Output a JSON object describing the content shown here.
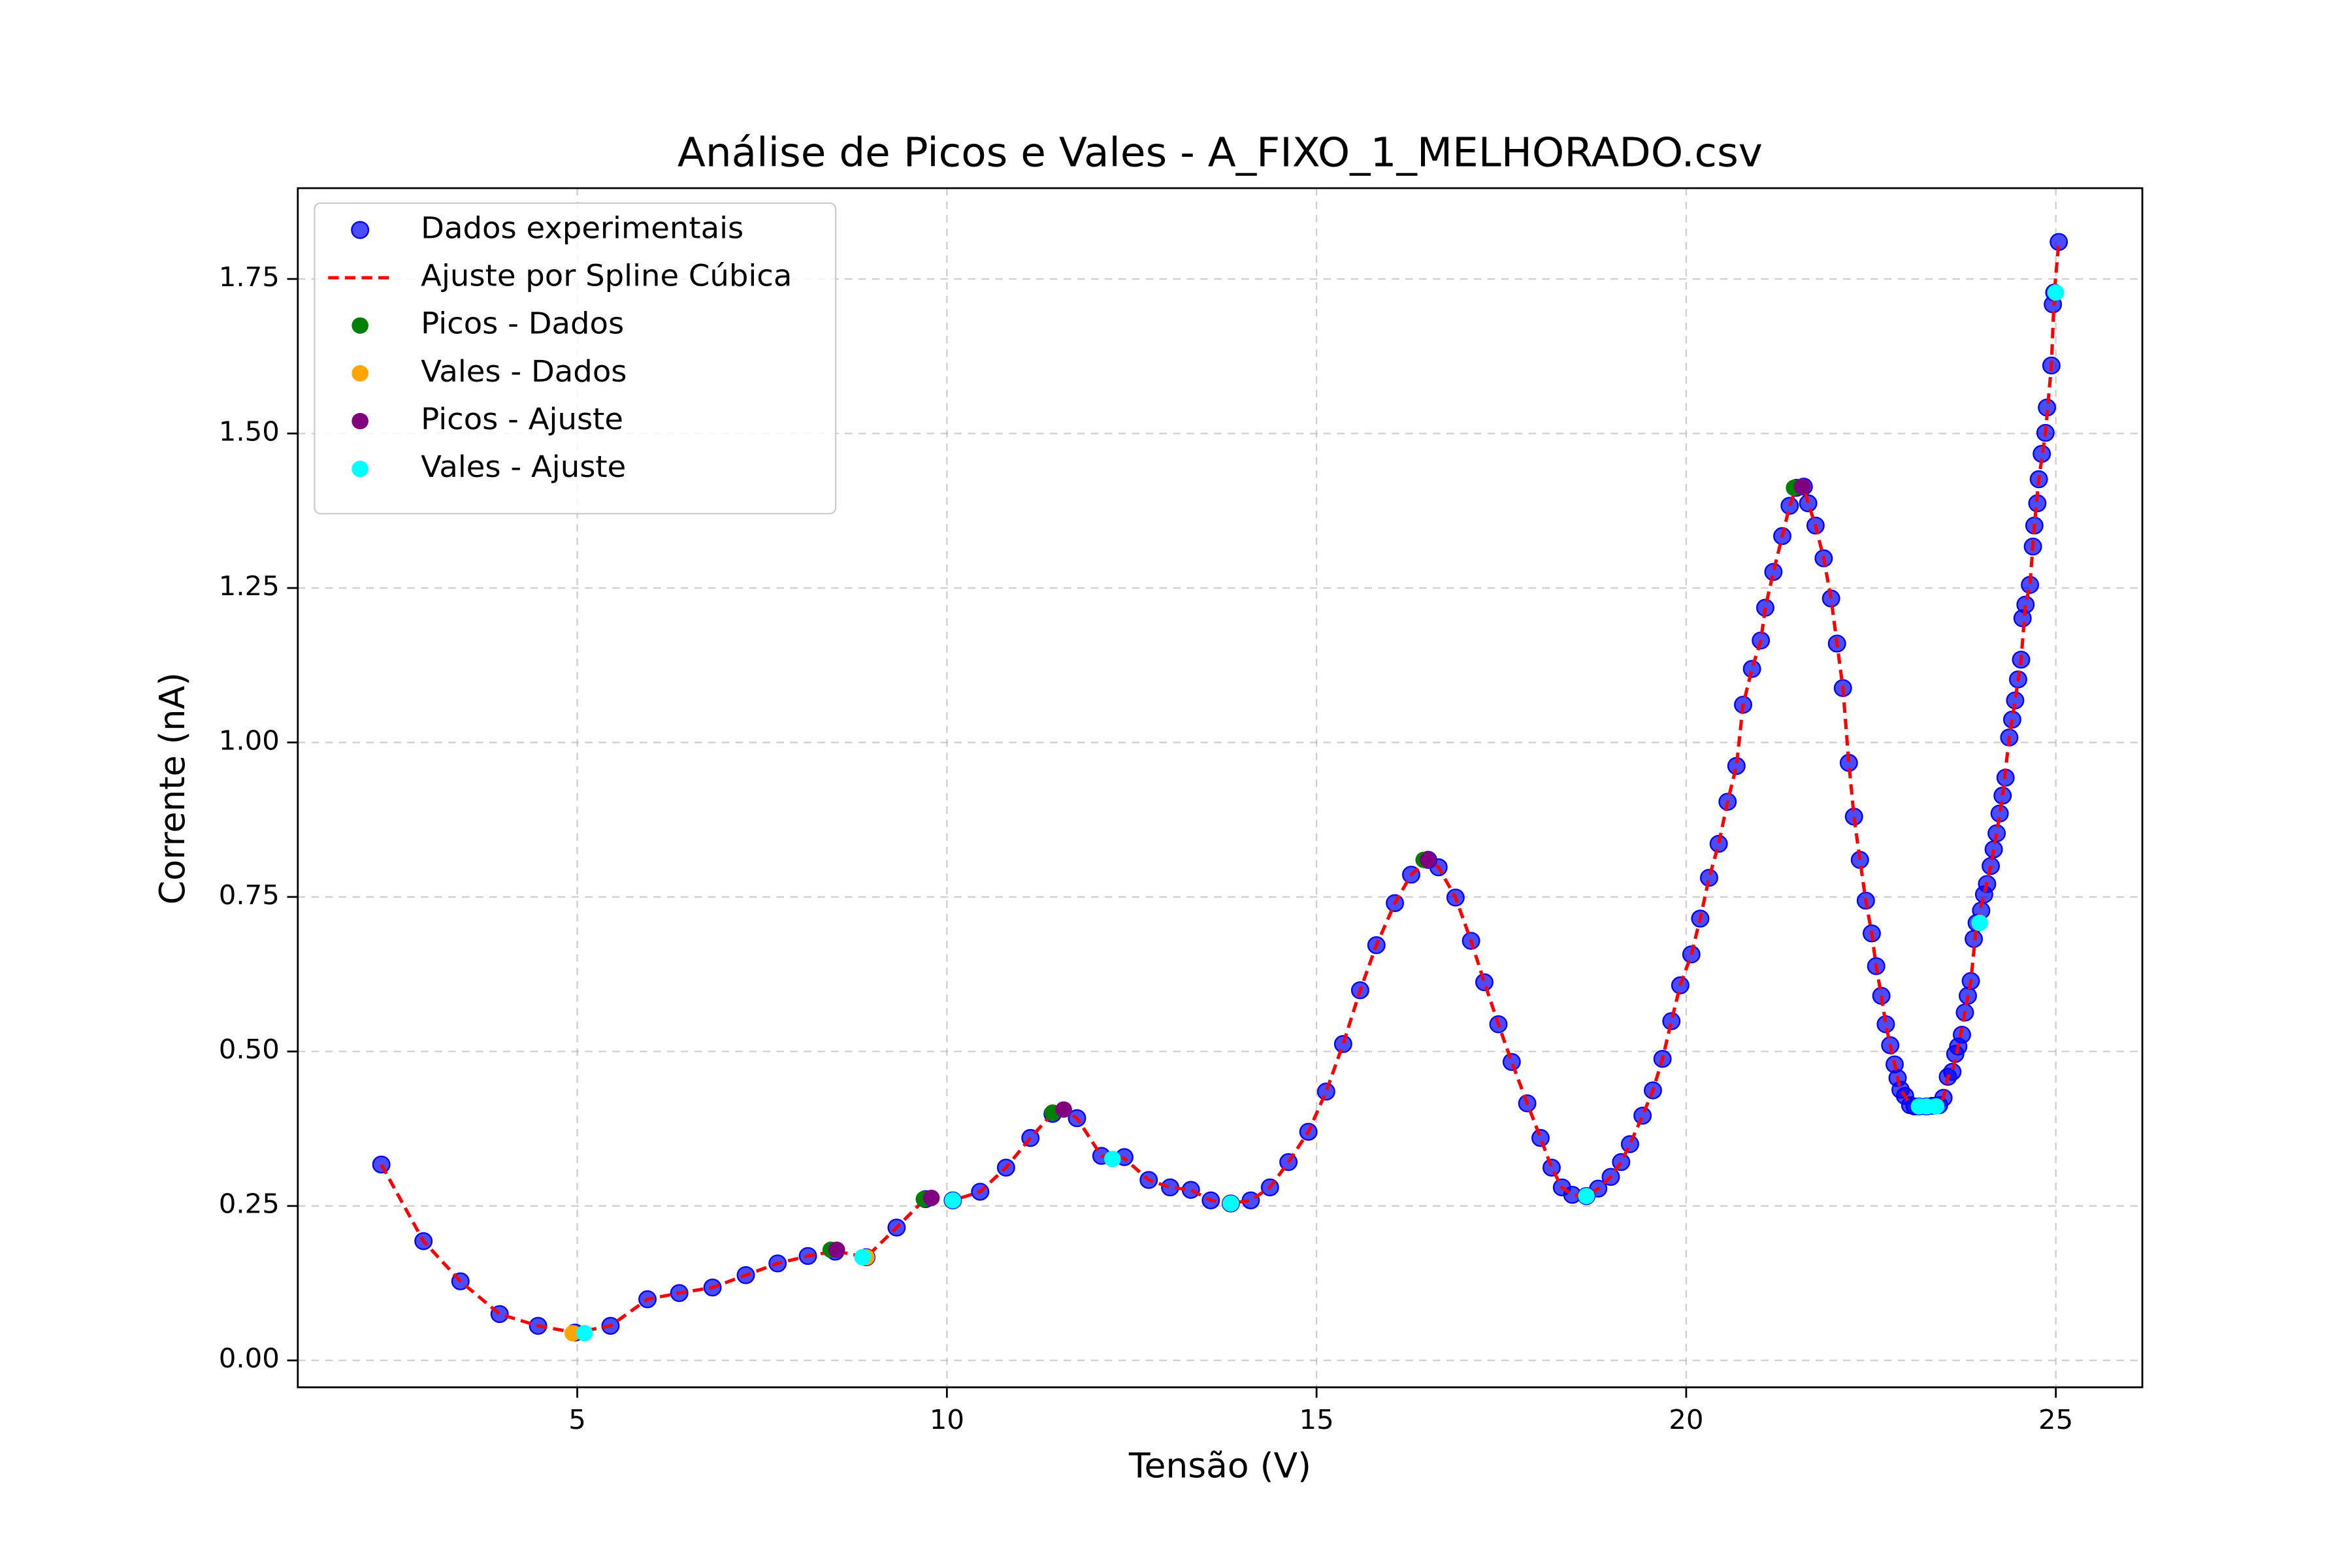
{
  "chart_data": {
    "type": "scatter",
    "title": "Análise de Picos e Vales - A_FIXO_1_MELHORADO.csv",
    "xlabel": "Tensão (V)",
    "ylabel": "Corrente (nA)",
    "xlim": [
      1.22,
      26.17
    ],
    "ylim": [
      -0.0435,
      1.897
    ],
    "xticks": [
      5,
      10,
      15,
      20,
      25
    ],
    "yticks": [
      {
        "value": 0,
        "label": "0.00"
      },
      {
        "value": 0.25,
        "label": "0.25"
      },
      {
        "value": 0.5,
        "label": "0.50"
      },
      {
        "value": 0.75,
        "label": "0.75"
      },
      {
        "value": 1,
        "label": "1.00"
      },
      {
        "value": 1.25,
        "label": "1.25"
      },
      {
        "value": 1.5,
        "label": "1.50"
      },
      {
        "value": 1.75,
        "label": "1.75"
      }
    ],
    "grid": true,
    "legend": "upper left",
    "series": [
      {
        "name": "Dados experimentais",
        "color": "#0000ff",
        "marker": "o",
        "x": [
          2.35,
          2.92,
          3.42,
          3.95,
          4.47,
          4.97,
          5.45,
          5.95,
          6.38,
          6.83,
          7.28,
          7.71,
          8.12,
          8.49,
          8.91,
          9.32,
          9.71,
          10.08,
          10.45,
          10.8,
          11.13,
          11.43,
          11.76,
          12.09,
          12.4,
          12.73,
          13.02,
          13.3,
          13.57,
          13.84,
          14.11,
          14.37,
          14.62,
          14.89,
          15.13,
          15.36,
          15.59,
          15.81,
          16.06,
          16.28,
          16.51,
          16.65,
          16.88,
          17.09,
          17.27,
          17.46,
          17.64,
          17.85,
          18.03,
          18.18,
          18.32,
          18.46,
          18.65,
          18.81,
          18.98,
          19.12,
          19.24,
          19.41,
          19.55,
          19.68,
          19.8,
          19.92,
          20.07,
          20.19,
          20.31,
          20.44,
          20.56,
          20.68,
          20.77,
          20.89,
          21.01,
          21.07,
          21.18,
          21.3,
          21.4,
          21.49,
          21.59,
          21.65,
          21.75,
          21.86,
          21.96,
          22.04,
          22.12,
          22.2,
          22.27,
          22.35,
          22.43,
          22.51,
          22.57,
          22.64,
          22.7,
          22.76,
          22.82,
          22.86,
          22.9,
          22.96,
          23.03,
          23.09,
          23.15,
          23.25,
          23.33,
          23.42,
          23.48,
          23.54,
          23.6,
          23.64,
          23.68,
          23.73,
          23.77,
          23.81,
          23.85,
          23.89,
          23.93,
          23.99,
          24.03,
          24.07,
          24.12,
          24.16,
          24.2,
          24.24,
          24.28,
          24.32,
          24.37,
          24.41,
          24.45,
          24.49,
          24.53,
          24.55,
          24.59,
          24.65,
          24.69,
          24.71,
          24.75,
          24.77,
          24.81,
          24.86,
          24.88,
          24.94,
          24.96,
          24.98,
          25.04
        ],
        "values": [
          0.317,
          0.193,
          0.128,
          0.075,
          0.056,
          0.045,
          0.056,
          0.099,
          0.109,
          0.118,
          0.138,
          0.157,
          0.169,
          0.176,
          0.167,
          0.215,
          0.261,
          0.259,
          0.273,
          0.312,
          0.36,
          0.399,
          0.392,
          0.331,
          0.329,
          0.292,
          0.28,
          0.276,
          0.259,
          0.254,
          0.259,
          0.28,
          0.321,
          0.37,
          0.435,
          0.512,
          0.599,
          0.672,
          0.74,
          0.786,
          0.81,
          0.798,
          0.749,
          0.679,
          0.612,
          0.544,
          0.483,
          0.416,
          0.36,
          0.312,
          0.28,
          0.268,
          0.266,
          0.278,
          0.297,
          0.321,
          0.35,
          0.396,
          0.437,
          0.488,
          0.549,
          0.607,
          0.657,
          0.715,
          0.781,
          0.836,
          0.904,
          0.962,
          1.061,
          1.119,
          1.165,
          1.218,
          1.276,
          1.334,
          1.383,
          1.412,
          1.414,
          1.387,
          1.351,
          1.298,
          1.233,
          1.16,
          1.088,
          0.967,
          0.88,
          0.81,
          0.744,
          0.691,
          0.638,
          0.59,
          0.544,
          0.51,
          0.479,
          0.457,
          0.438,
          0.428,
          0.413,
          0.411,
          0.411,
          0.411,
          0.412,
          0.413,
          0.425,
          0.459,
          0.467,
          0.496,
          0.508,
          0.527,
          0.563,
          0.59,
          0.614,
          0.682,
          0.708,
          0.728,
          0.754,
          0.771,
          0.8,
          0.827,
          0.853,
          0.885,
          0.914,
          0.943,
          1.008,
          1.037,
          1.068,
          1.102,
          1.134,
          1.201,
          1.223,
          1.255,
          1.317,
          1.351,
          1.387,
          1.426,
          1.467,
          1.501,
          1.542,
          1.61,
          1.709,
          1.728,
          1.81
        ]
      },
      {
        "name": "Ajuste por Spline Cúbica",
        "color": "#ff0000",
        "linestyle": "dashed",
        "x": [
          2.35,
          2.92,
          3.42,
          3.95,
          4.47,
          4.97,
          5.45,
          5.95,
          6.38,
          6.83,
          7.28,
          7.71,
          8.12,
          8.49,
          8.91,
          9.32,
          9.71,
          10.08,
          10.45,
          10.8,
          11.13,
          11.43,
          11.58,
          11.76,
          12.09,
          12.4,
          12.73,
          13.02,
          13.3,
          13.57,
          13.84,
          14.11,
          14.37,
          14.62,
          14.89,
          15.13,
          15.36,
          15.59,
          15.81,
          16.06,
          16.28,
          16.51,
          16.65,
          16.88,
          17.09,
          17.27,
          17.46,
          17.64,
          17.85,
          18.03,
          18.18,
          18.32,
          18.46,
          18.65,
          18.81,
          18.98,
          19.12,
          19.24,
          19.41,
          19.55,
          19.68,
          19.8,
          19.92,
          20.07,
          20.19,
          20.31,
          20.44,
          20.56,
          20.68,
          20.77,
          20.89,
          21.01,
          21.07,
          21.18,
          21.3,
          21.4,
          21.49,
          21.59,
          21.65,
          21.75,
          21.86,
          21.96,
          22.04,
          22.12,
          22.2,
          22.27,
          22.35,
          22.43,
          22.51,
          22.57,
          22.64,
          22.7,
          22.76,
          22.82,
          22.86,
          22.9,
          22.96,
          23.03,
          23.15,
          23.25,
          23.38,
          23.48,
          23.54,
          23.6,
          23.68,
          23.77,
          23.85,
          23.93,
          24.03,
          24.12,
          24.2,
          24.28,
          24.37,
          24.45,
          24.53,
          24.59,
          24.65,
          24.71,
          24.77,
          24.86,
          24.94,
          24.98,
          25.04
        ],
        "values": [
          0.317,
          0.193,
          0.128,
          0.075,
          0.056,
          0.045,
          0.056,
          0.099,
          0.109,
          0.118,
          0.138,
          0.157,
          0.169,
          0.177,
          0.167,
          0.215,
          0.262,
          0.259,
          0.273,
          0.312,
          0.36,
          0.4,
          0.406,
          0.392,
          0.331,
          0.327,
          0.292,
          0.28,
          0.276,
          0.259,
          0.254,
          0.259,
          0.28,
          0.321,
          0.37,
          0.435,
          0.512,
          0.599,
          0.672,
          0.74,
          0.786,
          0.81,
          0.798,
          0.749,
          0.679,
          0.612,
          0.544,
          0.483,
          0.416,
          0.36,
          0.312,
          0.28,
          0.268,
          0.266,
          0.278,
          0.297,
          0.321,
          0.35,
          0.396,
          0.437,
          0.488,
          0.549,
          0.607,
          0.657,
          0.715,
          0.781,
          0.836,
          0.904,
          0.962,
          1.061,
          1.119,
          1.165,
          1.218,
          1.276,
          1.334,
          1.383,
          1.412,
          1.414,
          1.387,
          1.351,
          1.298,
          1.233,
          1.16,
          1.088,
          0.967,
          0.88,
          0.81,
          0.744,
          0.691,
          0.638,
          0.59,
          0.544,
          0.51,
          0.479,
          0.457,
          0.438,
          0.428,
          0.413,
          0.411,
          0.411,
          0.412,
          0.425,
          0.459,
          0.467,
          0.508,
          0.563,
          0.614,
          0.708,
          0.754,
          0.8,
          0.853,
          0.914,
          1.008,
          1.068,
          1.134,
          1.223,
          1.255,
          1.351,
          1.426,
          1.501,
          1.61,
          1.728,
          1.81
        ]
      },
      {
        "name": "Picos - Dados",
        "color": "green",
        "marker": "o",
        "x": [
          8.43,
          9.69,
          11.43,
          16.45,
          21.46
        ],
        "values": [
          0.179,
          0.261,
          0.401,
          0.81,
          1.412
        ]
      },
      {
        "name": "Vales - Dados",
        "color": "orange",
        "marker": "o",
        "x": [
          4.94,
          8.91
        ],
        "values": [
          0.044,
          0.167
        ]
      },
      {
        "name": "Picos - Ajuste",
        "color": "purple",
        "marker": "o",
        "x": [
          8.51,
          9.79,
          11.58,
          16.51,
          21.57
        ],
        "values": [
          0.179,
          0.263,
          0.406,
          0.81,
          1.414
        ]
      },
      {
        "name": "Vales - Ajuste",
        "color": "cyan",
        "marker": "o",
        "x": [
          5.1,
          8.86,
          10.08,
          12.24,
          13.84,
          18.65,
          23.15,
          23.25,
          23.38,
          23.97,
          25.0
        ],
        "values": [
          0.044,
          0.167,
          0.259,
          0.326,
          0.254,
          0.266,
          0.411,
          0.411,
          0.411,
          0.708,
          1.728
        ]
      }
    ]
  }
}
